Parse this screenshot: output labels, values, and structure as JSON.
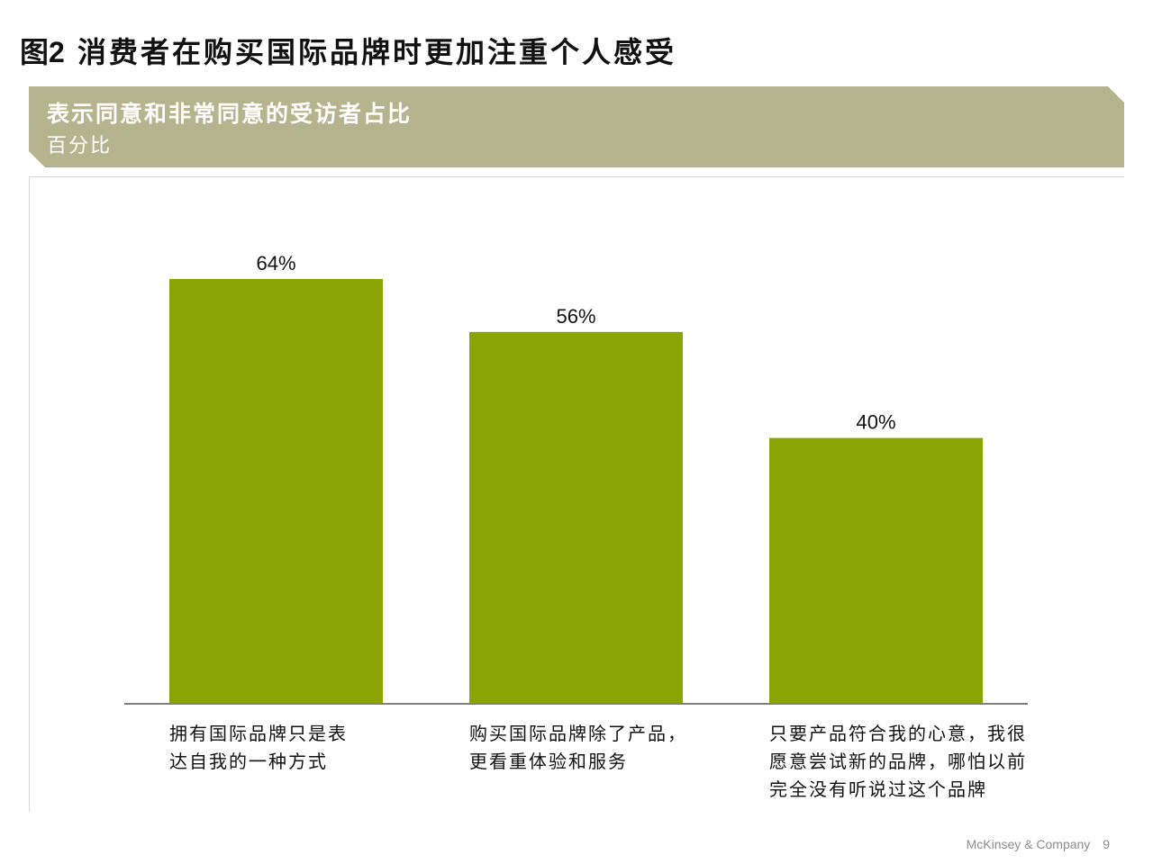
{
  "header": {
    "figure_label": "图2",
    "title": "消费者在购买国际品牌时更加注重个人感受"
  },
  "banner": {
    "title": "表示同意和非常同意的受访者占比",
    "subtitle": "百分比"
  },
  "colors": {
    "bar": "#8aa503",
    "banner": "#b6b48e",
    "axis": "#7f7f7f"
  },
  "chart_data": {
    "type": "bar",
    "categories": [
      "拥有国际品牌只是表达自我的一种方式",
      "购买国际品牌除了产品，更看重体验和服务",
      "只要产品符合我的心意，我很愿意尝试新的品牌，哪怕以前完全没有听说过这个品牌"
    ],
    "category_lines": [
      [
        "拥有国际品牌只是表",
        "达自我的一种方式"
      ],
      [
        "购买国际品牌除了产品，",
        "更看重体验和服务"
      ],
      [
        "只要产品符合我的心意，我很",
        "愿意尝试新的品牌，哪怕以前",
        "完全没有听说过这个品牌"
      ]
    ],
    "values": [
      64,
      56,
      40
    ],
    "data_labels": [
      "64%",
      "56%",
      "40%"
    ],
    "ylim": [
      0,
      100
    ],
    "grid": false,
    "legend": "none"
  },
  "footer": {
    "company": "McKinsey & Company",
    "page": "9"
  }
}
